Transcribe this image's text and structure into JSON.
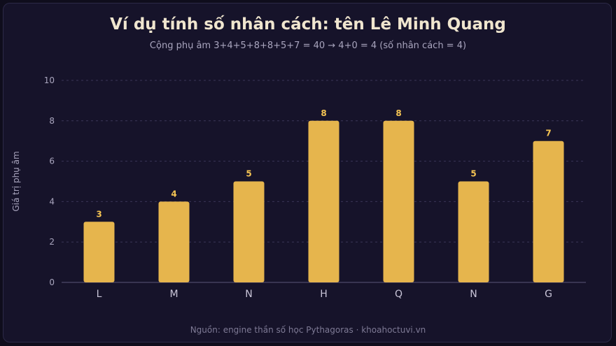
{
  "title": "Ví dụ tính số nhân cách: tên Lê Minh Quang",
  "subtitle": "Cộng phụ âm 3+4+5+8+8+5+7 = 40 → 4+0 = 4 (số nhân cách = 4)",
  "source": "Nguồn: engine thần số học Pythagoras · khoahoctuvi.vn",
  "colors": {
    "background": "#16132a",
    "bar": "#e6b54d",
    "label": "#f5c453",
    "grid": "#3a3658",
    "axis_text": "#c9c5d8",
    "tick_text": "#a9a5be"
  },
  "chart_data": {
    "type": "bar",
    "categories": [
      "L",
      "M",
      "N",
      "H",
      "Q",
      "N",
      "G"
    ],
    "values": [
      3,
      4,
      5,
      8,
      8,
      5,
      7
    ],
    "xlabel": "",
    "ylabel": "Giá trị phụ âm",
    "ylim": [
      0,
      10
    ],
    "yticks": [
      0,
      2,
      4,
      6,
      8,
      10
    ],
    "grid": true,
    "data_labels": true
  }
}
